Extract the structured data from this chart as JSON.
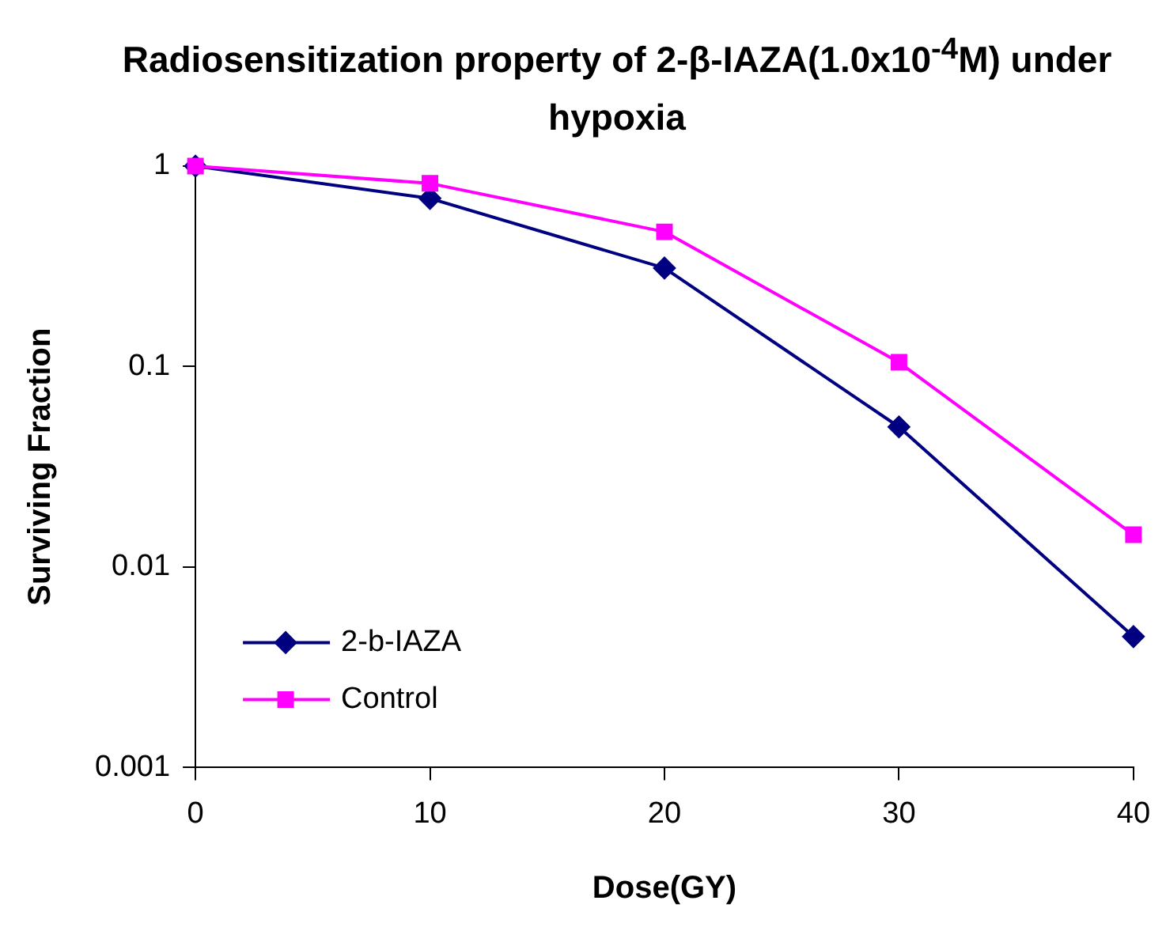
{
  "chart_data": {
    "type": "line",
    "title": "Radiosensitization property of 2-β-IAZA(1.0x10$^{-4}$M) under hypoxia",
    "xlabel": "Dose(GY)",
    "ylabel": "Surviving Fraction",
    "x": [
      0,
      10,
      20,
      30,
      40
    ],
    "series": [
      {
        "name": "2-b-IAZA",
        "color": "#000080",
        "marker": "diamond",
        "values": [
          1,
          0.69,
          0.31,
          0.05,
          0.0045
        ]
      },
      {
        "name": "Control",
        "color": "#ff00ff",
        "marker": "square",
        "values": [
          1,
          0.82,
          0.47,
          0.105,
          0.0145
        ]
      }
    ],
    "xlim": [
      0,
      40
    ],
    "xticks": [
      0,
      10,
      20,
      30,
      40
    ],
    "ylim": [
      0.001,
      1
    ],
    "yticks": [
      0.001,
      0.01,
      0.1,
      1
    ],
    "log": "y",
    "grid": false,
    "legend": "bottom left",
    "line_style": "solid"
  }
}
